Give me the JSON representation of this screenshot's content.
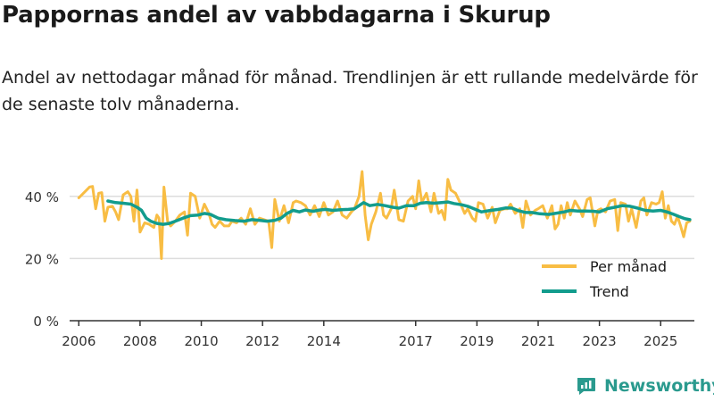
{
  "title": "Pappornas andel av vabbdagarna i Skurup",
  "subtitle": "Andel av nettodagar månad för månad. Trendlinjen är ett rullande medelvärde för de senaste tolv månaderna.",
  "brand": "Newsworthy",
  "colors": {
    "per_manad": "#f8bd44",
    "trend": "#129c8d",
    "grid": "#dddddd",
    "axis": "#333333"
  },
  "chart_data": {
    "type": "line",
    "title": "Pappornas andel av vabbdagarna i Skurup",
    "xlabel": "",
    "ylabel": "",
    "ylim": [
      0,
      50
    ],
    "y_ticks": [
      0,
      20,
      40
    ],
    "y_tick_labels": [
      "0 %",
      "20 %",
      "40 %"
    ],
    "x_range": [
      2005.7,
      2026.1
    ],
    "x_ticks": [
      2006,
      2008,
      2010,
      2012,
      2014,
      2017,
      2019,
      2021,
      2023,
      2025
    ],
    "x_tick_labels": [
      "2006",
      "2008",
      "2010",
      "2012",
      "2014",
      "2017",
      "2019",
      "2021",
      "2023",
      "2025"
    ],
    "legend_position": "bottom-right",
    "series": [
      {
        "name": "Per månad",
        "points": [
          [
            2006.0,
            39.5
          ],
          [
            2006.2,
            41.5
          ],
          [
            2006.35,
            43.0
          ],
          [
            2006.45,
            43.2
          ],
          [
            2006.55,
            36.0
          ],
          [
            2006.65,
            41.0
          ],
          [
            2006.75,
            41.2
          ],
          [
            2006.85,
            32.0
          ],
          [
            2006.95,
            36.5
          ],
          [
            2007.1,
            36.8
          ],
          [
            2007.2,
            35.0
          ],
          [
            2007.3,
            32.5
          ],
          [
            2007.45,
            40.5
          ],
          [
            2007.6,
            41.5
          ],
          [
            2007.7,
            40.0
          ],
          [
            2007.8,
            32.0
          ],
          [
            2007.9,
            42.0
          ],
          [
            2008.0,
            28.5
          ],
          [
            2008.15,
            31.5
          ],
          [
            2008.3,
            31.0
          ],
          [
            2008.45,
            30.0
          ],
          [
            2008.55,
            34.0
          ],
          [
            2008.62,
            33.0
          ],
          [
            2008.7,
            20.0
          ],
          [
            2008.78,
            43.0
          ],
          [
            2008.9,
            32.0
          ],
          [
            2009.0,
            30.5
          ],
          [
            2009.15,
            32.0
          ],
          [
            2009.3,
            34.0
          ],
          [
            2009.45,
            35.0
          ],
          [
            2009.55,
            27.5
          ],
          [
            2009.65,
            41.0
          ],
          [
            2009.8,
            40.0
          ],
          [
            2009.95,
            33.0
          ],
          [
            2010.1,
            37.5
          ],
          [
            2010.25,
            34.5
          ],
          [
            2010.35,
            31.0
          ],
          [
            2010.45,
            30.0
          ],
          [
            2010.6,
            32.0
          ],
          [
            2010.75,
            30.5
          ],
          [
            2010.9,
            30.5
          ],
          [
            2011.0,
            32.0
          ],
          [
            2011.15,
            31.5
          ],
          [
            2011.3,
            33.0
          ],
          [
            2011.45,
            31.0
          ],
          [
            2011.6,
            36.0
          ],
          [
            2011.75,
            31.0
          ],
          [
            2011.9,
            33.0
          ],
          [
            2012.05,
            32.5
          ],
          [
            2012.2,
            32.0
          ],
          [
            2012.3,
            23.5
          ],
          [
            2012.4,
            39.0
          ],
          [
            2012.55,
            32.0
          ],
          [
            2012.7,
            37.0
          ],
          [
            2012.85,
            31.5
          ],
          [
            2013.0,
            38.0
          ],
          [
            2013.1,
            38.5
          ],
          [
            2013.25,
            38.0
          ],
          [
            2013.4,
            37.0
          ],
          [
            2013.55,
            34.0
          ],
          [
            2013.7,
            37.0
          ],
          [
            2013.85,
            33.5
          ],
          [
            2014.0,
            38.0
          ],
          [
            2014.15,
            34.0
          ],
          [
            2014.3,
            35.0
          ],
          [
            2014.45,
            38.5
          ],
          [
            2014.6,
            34.0
          ],
          [
            2014.75,
            33.0
          ],
          [
            2014.9,
            35.0
          ],
          [
            2015.0,
            36.0
          ],
          [
            2015.15,
            40.0
          ],
          [
            2015.25,
            48.0
          ],
          [
            2015.35,
            34.0
          ],
          [
            2015.45,
            26.0
          ],
          [
            2015.55,
            31.0
          ],
          [
            2015.7,
            35.0
          ],
          [
            2015.85,
            41.0
          ],
          [
            2015.95,
            34.0
          ],
          [
            2016.05,
            33.0
          ],
          [
            2016.2,
            36.0
          ],
          [
            2016.3,
            42.0
          ],
          [
            2016.45,
            32.5
          ],
          [
            2016.6,
            32.0
          ],
          [
            2016.75,
            38.5
          ],
          [
            2016.9,
            40.0
          ],
          [
            2017.0,
            36.0
          ],
          [
            2017.1,
            45.0
          ],
          [
            2017.2,
            38.0
          ],
          [
            2017.35,
            41.0
          ],
          [
            2017.5,
            35.0
          ],
          [
            2017.6,
            41.0
          ],
          [
            2017.75,
            34.5
          ],
          [
            2017.85,
            35.5
          ],
          [
            2017.95,
            32.5
          ],
          [
            2018.05,
            45.5
          ],
          [
            2018.15,
            42.0
          ],
          [
            2018.3,
            41.0
          ],
          [
            2018.45,
            38.0
          ],
          [
            2018.6,
            34.5
          ],
          [
            2018.7,
            36.0
          ],
          [
            2018.85,
            33.0
          ],
          [
            2018.95,
            32.0
          ],
          [
            2019.05,
            38.0
          ],
          [
            2019.2,
            37.5
          ],
          [
            2019.35,
            33.0
          ],
          [
            2019.5,
            36.5
          ],
          [
            2019.6,
            31.5
          ],
          [
            2019.75,
            35.5
          ],
          [
            2019.9,
            36.0
          ],
          [
            2020.0,
            36.0
          ],
          [
            2020.1,
            37.5
          ],
          [
            2020.25,
            34.5
          ],
          [
            2020.4,
            36.0
          ],
          [
            2020.5,
            30.0
          ],
          [
            2020.6,
            38.5
          ],
          [
            2020.75,
            34.0
          ],
          [
            2020.9,
            35.5
          ],
          [
            2021.0,
            36.0
          ],
          [
            2021.15,
            37.0
          ],
          [
            2021.3,
            33.0
          ],
          [
            2021.45,
            37.0
          ],
          [
            2021.55,
            29.5
          ],
          [
            2021.65,
            31.0
          ],
          [
            2021.75,
            37.0
          ],
          [
            2021.85,
            33.0
          ],
          [
            2021.95,
            38.0
          ],
          [
            2022.05,
            34.0
          ],
          [
            2022.2,
            38.5
          ],
          [
            2022.35,
            36.0
          ],
          [
            2022.45,
            33.5
          ],
          [
            2022.6,
            39.0
          ],
          [
            2022.7,
            39.5
          ],
          [
            2022.85,
            30.5
          ],
          [
            2022.95,
            35.5
          ],
          [
            2023.05,
            36.0
          ],
          [
            2023.2,
            35.0
          ],
          [
            2023.35,
            38.5
          ],
          [
            2023.5,
            39.0
          ],
          [
            2023.6,
            29.0
          ],
          [
            2023.7,
            38.0
          ],
          [
            2023.85,
            37.5
          ],
          [
            2023.95,
            32.0
          ],
          [
            2024.05,
            36.0
          ],
          [
            2024.2,
            30.0
          ],
          [
            2024.35,
            38.5
          ],
          [
            2024.45,
            39.5
          ],
          [
            2024.55,
            34.0
          ],
          [
            2024.7,
            38.0
          ],
          [
            2024.85,
            37.5
          ],
          [
            2024.95,
            38.0
          ],
          [
            2025.05,
            41.5
          ],
          [
            2025.15,
            33.0
          ],
          [
            2025.25,
            37.0
          ],
          [
            2025.35,
            32.0
          ],
          [
            2025.45,
            31.0
          ],
          [
            2025.55,
            33.5
          ],
          [
            2025.65,
            30.5
          ],
          [
            2025.75,
            27.0
          ],
          [
            2025.85,
            31.5
          ],
          [
            2025.95,
            32.0
          ]
        ]
      },
      {
        "name": "Trend",
        "points": [
          [
            2006.95,
            38.5
          ],
          [
            2007.2,
            38.0
          ],
          [
            2007.45,
            37.8
          ],
          [
            2007.7,
            37.5
          ],
          [
            2007.9,
            36.5
          ],
          [
            2008.05,
            35.5
          ],
          [
            2008.2,
            33.0
          ],
          [
            2008.35,
            32.0
          ],
          [
            2008.55,
            31.3
          ],
          [
            2008.75,
            31.0
          ],
          [
            2008.95,
            31.3
          ],
          [
            2009.15,
            32.0
          ],
          [
            2009.4,
            33.0
          ],
          [
            2009.65,
            33.8
          ],
          [
            2009.9,
            34.0
          ],
          [
            2010.1,
            34.5
          ],
          [
            2010.3,
            34.2
          ],
          [
            2010.55,
            33.0
          ],
          [
            2010.8,
            32.5
          ],
          [
            2011.1,
            32.2
          ],
          [
            2011.4,
            32.0
          ],
          [
            2011.65,
            32.5
          ],
          [
            2011.9,
            32.3
          ],
          [
            2012.15,
            32.0
          ],
          [
            2012.4,
            32.3
          ],
          [
            2012.6,
            33.0
          ],
          [
            2012.8,
            34.5
          ],
          [
            2013.0,
            35.5
          ],
          [
            2013.2,
            35.0
          ],
          [
            2013.4,
            35.6
          ],
          [
            2013.65,
            35.2
          ],
          [
            2013.85,
            35.6
          ],
          [
            2014.05,
            35.8
          ],
          [
            2014.3,
            35.5
          ],
          [
            2014.55,
            35.7
          ],
          [
            2014.8,
            35.8
          ],
          [
            2015.0,
            36.0
          ],
          [
            2015.15,
            37.0
          ],
          [
            2015.3,
            38.0
          ],
          [
            2015.5,
            37.0
          ],
          [
            2015.75,
            37.4
          ],
          [
            2016.0,
            37.0
          ],
          [
            2016.25,
            36.5
          ],
          [
            2016.45,
            36.2
          ],
          [
            2016.7,
            37.0
          ],
          [
            2016.95,
            37.0
          ],
          [
            2017.15,
            37.8
          ],
          [
            2017.35,
            38.0
          ],
          [
            2017.6,
            37.8
          ],
          [
            2017.85,
            38.0
          ],
          [
            2018.05,
            38.2
          ],
          [
            2018.25,
            37.7
          ],
          [
            2018.5,
            37.3
          ],
          [
            2018.7,
            36.8
          ],
          [
            2018.95,
            35.8
          ],
          [
            2019.15,
            35.0
          ],
          [
            2019.45,
            35.5
          ],
          [
            2019.7,
            35.8
          ],
          [
            2019.95,
            36.3
          ],
          [
            2020.15,
            36.2
          ],
          [
            2020.35,
            35.4
          ],
          [
            2020.6,
            34.8
          ],
          [
            2020.8,
            34.8
          ],
          [
            2021.05,
            34.4
          ],
          [
            2021.35,
            34.2
          ],
          [
            2021.6,
            34.6
          ],
          [
            2021.85,
            35.0
          ],
          [
            2022.05,
            35.5
          ],
          [
            2022.3,
            35.3
          ],
          [
            2022.55,
            35.3
          ],
          [
            2022.8,
            35.2
          ],
          [
            2023.0,
            35.0
          ],
          [
            2023.25,
            36.0
          ],
          [
            2023.5,
            36.5
          ],
          [
            2023.75,
            37.0
          ],
          [
            2024.0,
            36.8
          ],
          [
            2024.25,
            36.2
          ],
          [
            2024.5,
            35.5
          ],
          [
            2024.75,
            35.3
          ],
          [
            2025.0,
            35.5
          ],
          [
            2025.2,
            35.0
          ],
          [
            2025.4,
            34.3
          ],
          [
            2025.6,
            33.5
          ],
          [
            2025.8,
            32.8
          ],
          [
            2025.95,
            32.5
          ]
        ]
      }
    ]
  }
}
